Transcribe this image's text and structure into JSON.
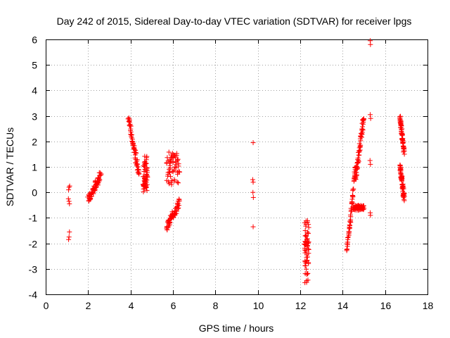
{
  "chart_data": {
    "type": "scatter",
    "title": "Day 242 of 2015, Sidereal Day-to-day VTEC variation (SDTVAR) for receiver lpgs",
    "xlabel": "GPS time / hours",
    "ylabel": "SDTVAR / TECUs",
    "xlim": [
      0,
      18
    ],
    "ylim": [
      -4,
      6
    ],
    "xticks": [
      "0",
      "2",
      "4",
      "6",
      "8",
      "10",
      "12",
      "14",
      "16",
      "18"
    ],
    "yticks": [
      "-4",
      "-3",
      "-2",
      "-1",
      "0",
      "1",
      "2",
      "3",
      "4",
      "5",
      "6"
    ],
    "grid": true,
    "marker": "+",
    "color": "#ff0000",
    "clusters": [
      {
        "name": "h1.1",
        "x_range": [
          1.05,
          1.15
        ],
        "points": [
          [
            1.08,
            -1.85
          ],
          [
            1.1,
            -1.75
          ],
          [
            1.12,
            -1.55
          ],
          [
            1.07,
            -0.25
          ],
          [
            1.1,
            -0.35
          ],
          [
            1.12,
            -0.45
          ],
          [
            1.08,
            0.1
          ],
          [
            1.1,
            0.2
          ],
          [
            1.13,
            0.25
          ]
        ]
      },
      {
        "name": "h2.0-2.6",
        "x_range": [
          2.0,
          2.6
        ],
        "trend": "rising",
        "y_from": -0.3,
        "y_to": 0.7
      },
      {
        "name": "h3.9-4.4",
        "x_range": [
          3.9,
          4.4
        ],
        "trend": "falling",
        "y_from": 2.9,
        "y_to": 0.7
      },
      {
        "name": "h4.6-4.8",
        "x_range": [
          4.6,
          4.8
        ],
        "trend": "scatter",
        "y_from": 0.0,
        "y_to": 1.5
      },
      {
        "name": "h5.7-6.3",
        "x_range": [
          5.7,
          6.3
        ],
        "trend": "scatter",
        "y_from": 0.3,
        "y_to": 1.7
      },
      {
        "name": "h5.7-6.3-low",
        "x_range": [
          5.7,
          6.3
        ],
        "trend": "rising",
        "y_from": -1.4,
        "y_to": -0.4
      },
      {
        "name": "h9.8",
        "x_range": [
          9.75,
          9.8
        ],
        "points": [
          [
            9.78,
            1.95
          ],
          [
            9.76,
            0.5
          ],
          [
            9.78,
            0.4
          ],
          [
            9.77,
            0.0
          ],
          [
            9.79,
            -0.2
          ],
          [
            9.78,
            -1.35
          ]
        ]
      },
      {
        "name": "h12.2-12.4",
        "x_range": [
          12.2,
          12.4
        ],
        "trend": "scatter",
        "y_from": -3.6,
        "y_to": -1.1
      },
      {
        "name": "h14.2-14.6",
        "x_range": [
          14.2,
          14.6
        ],
        "trend": "rising",
        "y_from": -2.4,
        "y_to": 1.0
      },
      {
        "name": "h14.6-15.0",
        "x_range": [
          14.6,
          15.0
        ],
        "trend": "rising",
        "y_from": 0.5,
        "y_to": 3.0
      },
      {
        "name": "h14.5-15.0-low",
        "x_range": [
          14.5,
          15.0
        ],
        "trend": "scatter",
        "y_from": -0.7,
        "y_to": -0.5
      },
      {
        "name": "h15.3",
        "x_range": [
          15.25,
          15.35
        ],
        "points": [
          [
            15.3,
            5.95
          ],
          [
            15.31,
            5.8
          ],
          [
            15.3,
            3.05
          ],
          [
            15.32,
            2.9
          ],
          [
            15.29,
            1.25
          ],
          [
            15.31,
            1.1
          ],
          [
            15.3,
            -0.8
          ],
          [
            15.31,
            -0.9
          ]
        ]
      },
      {
        "name": "h16.7-16.9",
        "x_range": [
          16.7,
          16.9
        ],
        "trend": "falling",
        "y_from": 2.95,
        "y_to": 1.6
      },
      {
        "name": "h16.7-16.9-low",
        "x_range": [
          16.7,
          16.9
        ],
        "trend": "falling",
        "y_from": 1.1,
        "y_to": -0.25
      }
    ]
  }
}
